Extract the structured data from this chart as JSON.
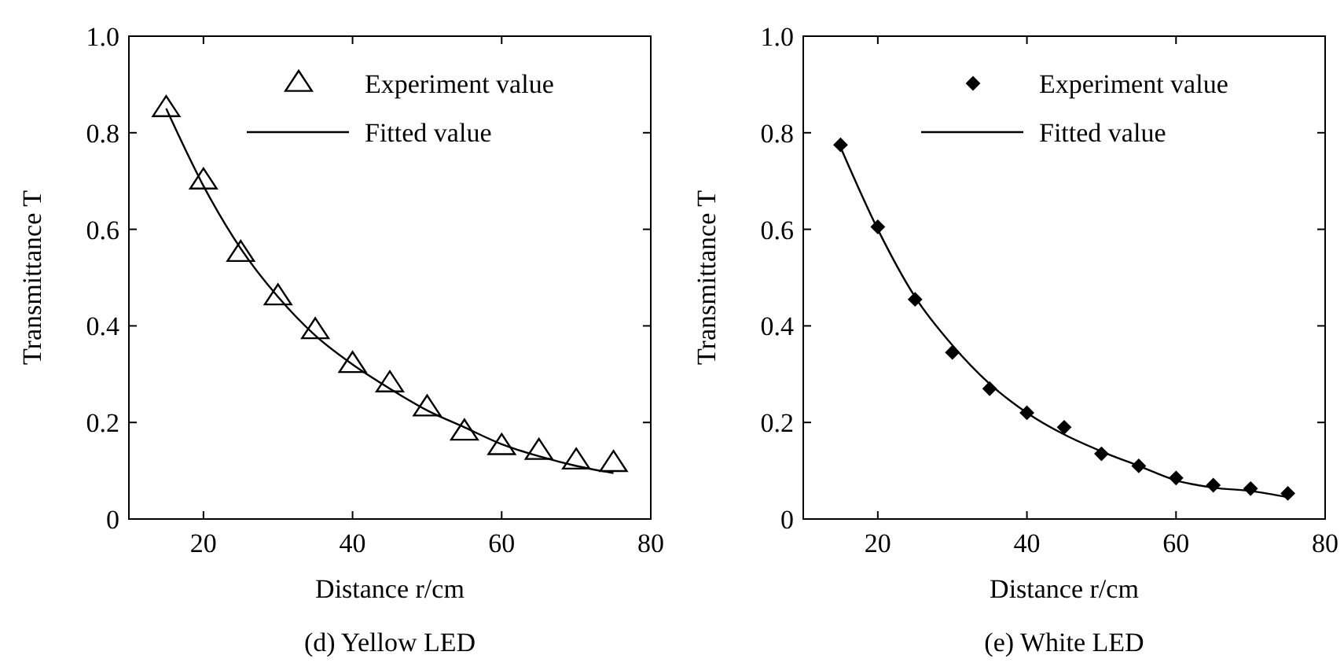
{
  "chart_data": [
    {
      "type": "scatter",
      "title": "(d) Yellow LED",
      "xlabel": "Distance r/cm",
      "ylabel": "Transmittance T",
      "xlim": [
        10,
        80
      ],
      "xticks": [
        20,
        40,
        60,
        80
      ],
      "ylim": [
        0,
        1
      ],
      "yticks": [
        0,
        0.2,
        0.4,
        0.6,
        0.8,
        {
          "value": 1,
          "label": "1.0"
        }
      ],
      "legend": "top right",
      "grid": false,
      "series": [
        {
          "name": "Experiment value",
          "marker": "triangle",
          "color": "#000000",
          "x": [
            15,
            20,
            25,
            30,
            35,
            40,
            45,
            50,
            55,
            60,
            65,
            70,
            75
          ],
          "values": [
            0.85,
            0.7,
            0.55,
            0.46,
            0.39,
            0.32,
            0.28,
            0.23,
            0.18,
            0.15,
            0.14,
            0.12,
            0.115
          ]
        },
        {
          "name": "Fitted value",
          "type": "line",
          "line_style": "solid",
          "color": "#000000",
          "x": [
            15,
            20,
            25,
            30,
            35,
            40,
            45,
            50,
            55,
            60,
            65,
            70,
            75
          ],
          "values": [
            0.85,
            0.69,
            0.56,
            0.46,
            0.38,
            0.32,
            0.27,
            0.225,
            0.19,
            0.155,
            0.13,
            0.11,
            0.095
          ]
        }
      ]
    },
    {
      "type": "scatter",
      "title": "(e) White LED",
      "xlabel": "Distance r/cm",
      "ylabel": "Transmittance T",
      "xlim": [
        10,
        80
      ],
      "xticks": [
        20,
        40,
        60,
        80
      ],
      "ylim": [
        0,
        1
      ],
      "yticks": [
        0,
        0.2,
        0.4,
        0.6,
        0.8,
        {
          "value": 1,
          "label": "1.0"
        }
      ],
      "legend": "top right",
      "grid": false,
      "series": [
        {
          "name": "Experiment value",
          "marker": "diamond",
          "color": "#000000",
          "x": [
            15,
            20,
            25,
            30,
            35,
            40,
            45,
            50,
            55,
            60,
            65,
            70,
            75
          ],
          "values": [
            0.775,
            0.605,
            0.455,
            0.345,
            0.27,
            0.22,
            0.19,
            0.135,
            0.11,
            0.085,
            0.07,
            0.063,
            0.053
          ]
        },
        {
          "name": "Fitted value",
          "type": "line",
          "line_style": "solid",
          "color": "#000000",
          "x": [
            15,
            20,
            25,
            30,
            35,
            40,
            45,
            50,
            55,
            60,
            65,
            70,
            75
          ],
          "values": [
            0.77,
            0.6,
            0.46,
            0.36,
            0.28,
            0.22,
            0.175,
            0.14,
            0.11,
            0.08,
            0.065,
            0.058,
            0.045
          ]
        }
      ]
    }
  ]
}
